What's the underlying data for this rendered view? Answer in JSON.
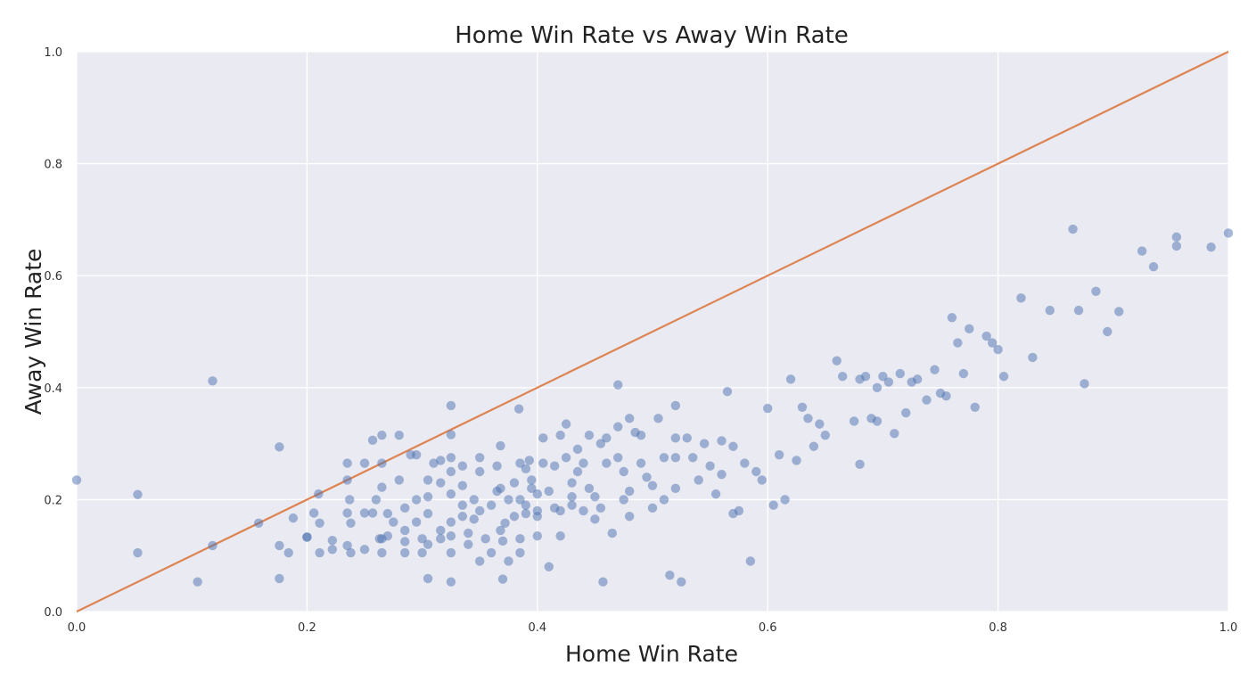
{
  "chart_data": {
    "type": "scatter",
    "title": "Home Win Rate vs Away Win Rate",
    "xlabel": "Home Win Rate",
    "ylabel": "Away Win Rate",
    "xlim": [
      0.0,
      1.0
    ],
    "ylim": [
      0.0,
      1.0
    ],
    "xticks": [
      "0.0",
      "0.2",
      "0.4",
      "0.6",
      "0.8",
      "1.0"
    ],
    "yticks": [
      "0.0",
      "0.2",
      "0.4",
      "0.6",
      "0.8",
      "1.0"
    ],
    "grid": true,
    "background_color": "#EAEAF2",
    "grid_color": "#FFFFFF",
    "point_color": "#4C72B0",
    "line_color": "#DD8452",
    "reference_line": {
      "x": [
        0.0,
        1.0
      ],
      "y": [
        0.0,
        1.0
      ]
    },
    "points": [
      [
        0.0,
        0.235
      ],
      [
        0.053,
        0.209
      ],
      [
        0.053,
        0.105
      ],
      [
        0.105,
        0.053
      ],
      [
        0.118,
        0.412
      ],
      [
        0.118,
        0.118
      ],
      [
        0.158,
        0.158
      ],
      [
        0.176,
        0.294
      ],
      [
        0.176,
        0.118
      ],
      [
        0.176,
        0.059
      ],
      [
        0.184,
        0.105
      ],
      [
        0.188,
        0.167
      ],
      [
        0.2,
        0.133
      ],
      [
        0.2,
        0.133
      ],
      [
        0.206,
        0.176
      ],
      [
        0.21,
        0.21
      ],
      [
        0.211,
        0.158
      ],
      [
        0.211,
        0.105
      ],
      [
        0.222,
        0.111
      ],
      [
        0.222,
        0.127
      ],
      [
        0.235,
        0.265
      ],
      [
        0.235,
        0.235
      ],
      [
        0.235,
        0.176
      ],
      [
        0.235,
        0.118
      ],
      [
        0.237,
        0.2
      ],
      [
        0.238,
        0.105
      ],
      [
        0.238,
        0.158
      ],
      [
        0.25,
        0.265
      ],
      [
        0.25,
        0.111
      ],
      [
        0.25,
        0.176
      ],
      [
        0.257,
        0.306
      ],
      [
        0.257,
        0.176
      ],
      [
        0.26,
        0.2
      ],
      [
        0.263,
        0.13
      ],
      [
        0.265,
        0.315
      ],
      [
        0.265,
        0.265
      ],
      [
        0.265,
        0.222
      ],
      [
        0.265,
        0.13
      ],
      [
        0.265,
        0.105
      ],
      [
        0.27,
        0.175
      ],
      [
        0.27,
        0.135
      ],
      [
        0.275,
        0.16
      ],
      [
        0.28,
        0.315
      ],
      [
        0.28,
        0.235
      ],
      [
        0.285,
        0.185
      ],
      [
        0.285,
        0.145
      ],
      [
        0.285,
        0.125
      ],
      [
        0.285,
        0.105
      ],
      [
        0.29,
        0.28
      ],
      [
        0.295,
        0.28
      ],
      [
        0.295,
        0.2
      ],
      [
        0.295,
        0.16
      ],
      [
        0.3,
        0.13
      ],
      [
        0.3,
        0.105
      ],
      [
        0.305,
        0.235
      ],
      [
        0.305,
        0.205
      ],
      [
        0.305,
        0.175
      ],
      [
        0.305,
        0.12
      ],
      [
        0.305,
        0.059
      ],
      [
        0.31,
        0.265
      ],
      [
        0.316,
        0.27
      ],
      [
        0.316,
        0.23
      ],
      [
        0.316,
        0.145
      ],
      [
        0.316,
        0.13
      ],
      [
        0.325,
        0.368
      ],
      [
        0.325,
        0.316
      ],
      [
        0.325,
        0.275
      ],
      [
        0.325,
        0.25
      ],
      [
        0.325,
        0.21
      ],
      [
        0.325,
        0.16
      ],
      [
        0.325,
        0.135
      ],
      [
        0.325,
        0.105
      ],
      [
        0.325,
        0.053
      ],
      [
        0.335,
        0.26
      ],
      [
        0.335,
        0.225
      ],
      [
        0.335,
        0.19
      ],
      [
        0.335,
        0.17
      ],
      [
        0.34,
        0.14
      ],
      [
        0.34,
        0.12
      ],
      [
        0.345,
        0.2
      ],
      [
        0.345,
        0.165
      ],
      [
        0.35,
        0.275
      ],
      [
        0.35,
        0.25
      ],
      [
        0.35,
        0.18
      ],
      [
        0.35,
        0.09
      ],
      [
        0.355,
        0.13
      ],
      [
        0.36,
        0.19
      ],
      [
        0.36,
        0.105
      ],
      [
        0.365,
        0.26
      ],
      [
        0.365,
        0.215
      ],
      [
        0.368,
        0.296
      ],
      [
        0.368,
        0.22
      ],
      [
        0.368,
        0.145
      ],
      [
        0.37,
        0.126
      ],
      [
        0.37,
        0.058
      ],
      [
        0.372,
        0.158
      ],
      [
        0.375,
        0.2
      ],
      [
        0.375,
        0.09
      ],
      [
        0.38,
        0.23
      ],
      [
        0.38,
        0.17
      ],
      [
        0.384,
        0.362
      ],
      [
        0.385,
        0.265
      ],
      [
        0.385,
        0.2
      ],
      [
        0.385,
        0.13
      ],
      [
        0.385,
        0.105
      ],
      [
        0.39,
        0.255
      ],
      [
        0.39,
        0.19
      ],
      [
        0.39,
        0.175
      ],
      [
        0.393,
        0.27
      ],
      [
        0.395,
        0.235
      ],
      [
        0.395,
        0.22
      ],
      [
        0.4,
        0.21
      ],
      [
        0.4,
        0.18
      ],
      [
        0.4,
        0.17
      ],
      [
        0.4,
        0.135
      ],
      [
        0.405,
        0.31
      ],
      [
        0.405,
        0.265
      ],
      [
        0.41,
        0.215
      ],
      [
        0.41,
        0.08
      ],
      [
        0.415,
        0.26
      ],
      [
        0.415,
        0.185
      ],
      [
        0.42,
        0.315
      ],
      [
        0.42,
        0.18
      ],
      [
        0.42,
        0.135
      ],
      [
        0.425,
        0.335
      ],
      [
        0.425,
        0.275
      ],
      [
        0.43,
        0.23
      ],
      [
        0.43,
        0.205
      ],
      [
        0.43,
        0.19
      ],
      [
        0.435,
        0.29
      ],
      [
        0.435,
        0.25
      ],
      [
        0.44,
        0.265
      ],
      [
        0.44,
        0.18
      ],
      [
        0.445,
        0.315
      ],
      [
        0.445,
        0.22
      ],
      [
        0.45,
        0.205
      ],
      [
        0.45,
        0.165
      ],
      [
        0.455,
        0.3
      ],
      [
        0.455,
        0.185
      ],
      [
        0.457,
        0.053
      ],
      [
        0.46,
        0.31
      ],
      [
        0.46,
        0.265
      ],
      [
        0.465,
        0.14
      ],
      [
        0.47,
        0.405
      ],
      [
        0.47,
        0.33
      ],
      [
        0.47,
        0.275
      ],
      [
        0.475,
        0.25
      ],
      [
        0.475,
        0.2
      ],
      [
        0.48,
        0.345
      ],
      [
        0.48,
        0.215
      ],
      [
        0.48,
        0.17
      ],
      [
        0.485,
        0.32
      ],
      [
        0.49,
        0.315
      ],
      [
        0.49,
        0.265
      ],
      [
        0.495,
        0.24
      ],
      [
        0.5,
        0.225
      ],
      [
        0.5,
        0.185
      ],
      [
        0.505,
        0.345
      ],
      [
        0.51,
        0.275
      ],
      [
        0.51,
        0.2
      ],
      [
        0.515,
        0.065
      ],
      [
        0.52,
        0.368
      ],
      [
        0.52,
        0.31
      ],
      [
        0.52,
        0.275
      ],
      [
        0.52,
        0.22
      ],
      [
        0.525,
        0.053
      ],
      [
        0.53,
        0.31
      ],
      [
        0.535,
        0.275
      ],
      [
        0.54,
        0.235
      ],
      [
        0.545,
        0.3
      ],
      [
        0.55,
        0.26
      ],
      [
        0.555,
        0.21
      ],
      [
        0.56,
        0.305
      ],
      [
        0.56,
        0.245
      ],
      [
        0.565,
        0.393
      ],
      [
        0.57,
        0.295
      ],
      [
        0.57,
        0.175
      ],
      [
        0.575,
        0.18
      ],
      [
        0.58,
        0.265
      ],
      [
        0.585,
        0.09
      ],
      [
        0.59,
        0.25
      ],
      [
        0.595,
        0.235
      ],
      [
        0.6,
        0.363
      ],
      [
        0.605,
        0.19
      ],
      [
        0.61,
        0.28
      ],
      [
        0.615,
        0.2
      ],
      [
        0.62,
        0.415
      ],
      [
        0.625,
        0.27
      ],
      [
        0.63,
        0.365
      ],
      [
        0.635,
        0.345
      ],
      [
        0.64,
        0.295
      ],
      [
        0.645,
        0.335
      ],
      [
        0.65,
        0.315
      ],
      [
        0.66,
        0.448
      ],
      [
        0.665,
        0.42
      ],
      [
        0.675,
        0.34
      ],
      [
        0.68,
        0.263
      ],
      [
        0.68,
        0.415
      ],
      [
        0.685,
        0.42
      ],
      [
        0.69,
        0.345
      ],
      [
        0.695,
        0.34
      ],
      [
        0.695,
        0.4
      ],
      [
        0.7,
        0.42
      ],
      [
        0.705,
        0.41
      ],
      [
        0.71,
        0.318
      ],
      [
        0.715,
        0.425
      ],
      [
        0.72,
        0.355
      ],
      [
        0.725,
        0.41
      ],
      [
        0.73,
        0.415
      ],
      [
        0.738,
        0.378
      ],
      [
        0.745,
        0.432
      ],
      [
        0.75,
        0.39
      ],
      [
        0.755,
        0.385
      ],
      [
        0.76,
        0.525
      ],
      [
        0.765,
        0.48
      ],
      [
        0.77,
        0.425
      ],
      [
        0.775,
        0.505
      ],
      [
        0.78,
        0.365
      ],
      [
        0.79,
        0.492
      ],
      [
        0.795,
        0.48
      ],
      [
        0.8,
        0.468
      ],
      [
        0.805,
        0.42
      ],
      [
        0.82,
        0.56
      ],
      [
        0.83,
        0.454
      ],
      [
        0.845,
        0.538
      ],
      [
        0.865,
        0.683
      ],
      [
        0.87,
        0.538
      ],
      [
        0.875,
        0.407
      ],
      [
        0.885,
        0.572
      ],
      [
        0.895,
        0.5
      ],
      [
        0.905,
        0.536
      ],
      [
        0.925,
        0.644
      ],
      [
        0.935,
        0.616
      ],
      [
        0.955,
        0.669
      ],
      [
        0.955,
        0.653
      ],
      [
        0.985,
        0.651
      ],
      [
        1.0,
        0.676
      ]
    ]
  }
}
